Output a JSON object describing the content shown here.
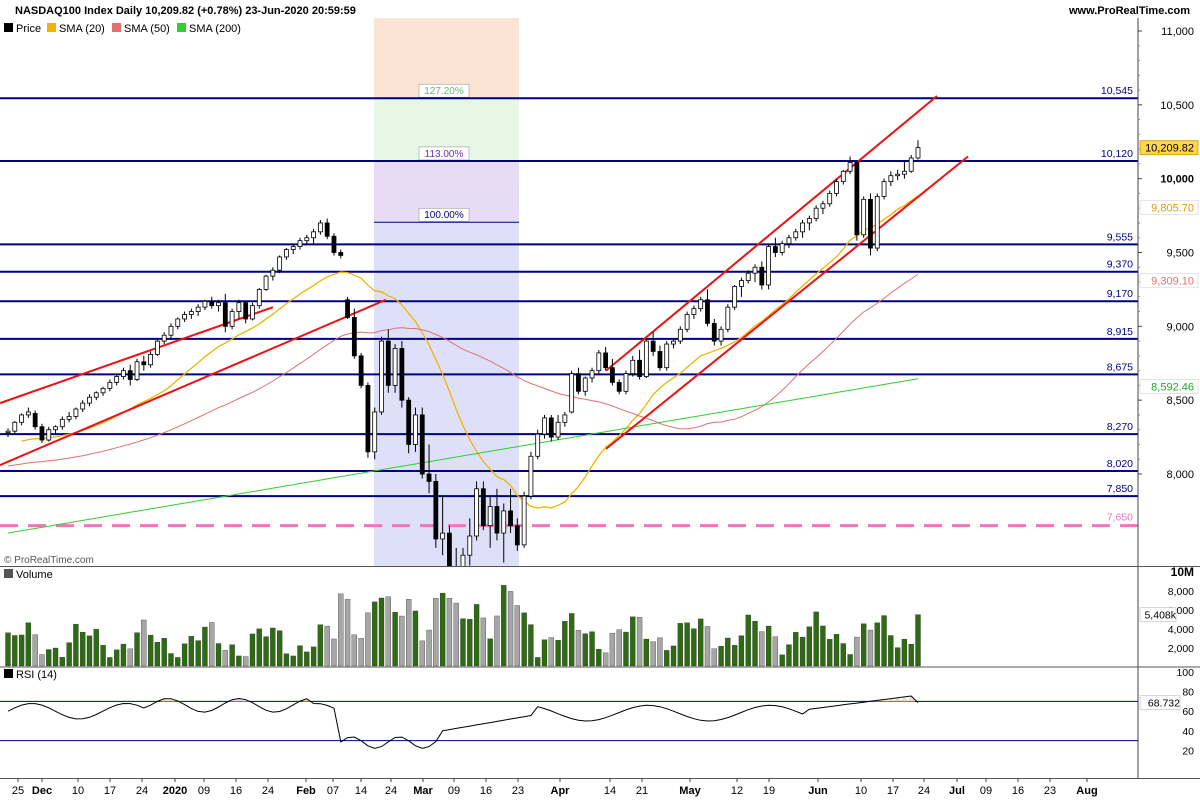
{
  "header": {
    "title": "NASDAQ100 Index Daily 10,209.82 (+0.78%) 23-Jun-2020 20:59:59",
    "brand": "www.ProRealTime.com",
    "watermark": "© ProRealTime.com"
  },
  "legend": {
    "price": "Price",
    "sma20": "SMA (20)",
    "sma50": "SMA (50)",
    "sma200": "SMA (200)",
    "volume": "Volume",
    "rsi": "RSI (14)"
  },
  "colors": {
    "sma20": "#f0b400",
    "sma50": "#e07070",
    "sma200": "#33cc33",
    "channel": "#ee1111",
    "level_line": "#000080",
    "dashed_level": "#ee77bb",
    "fib_band_top": "#fbe4d4",
    "fib_band_mid": "#e6f7e6",
    "fib_band_upper": "#e8dcf5",
    "fib_band_main": "#dde0f8",
    "vol_up": "#2e6b14",
    "vol_down": "#a6a6a6",
    "rsi_fill": "#f0d4d4"
  },
  "chart_data": {
    "type": "candlestick",
    "title": "NASDAQ100 Index Daily",
    "ylim": [
      7600,
      11100
    ],
    "y_ticks": [
      "11,000",
      "10,500",
      "10,000",
      "9,500",
      "9,000",
      "8,500",
      "8,000"
    ],
    "x_ticks": [
      "25",
      "Dec",
      "10",
      "17",
      "24",
      "2020",
      "09",
      "16",
      "24",
      "Feb",
      "07",
      "14",
      "24",
      "Mar",
      "09",
      "16",
      "23",
      "Apr",
      "14",
      "21",
      "May",
      "12",
      "19",
      "Jun",
      "10",
      "17",
      "24",
      "Jul",
      "09",
      "16",
      "23",
      "Aug"
    ],
    "levels": [
      {
        "value": 10545,
        "label": "10,545"
      },
      {
        "value": 10120,
        "label": "10,120"
      },
      {
        "value": 9555,
        "label": "9,555"
      },
      {
        "value": 9370,
        "label": "9,370"
      },
      {
        "value": 9170,
        "label": "9,170"
      },
      {
        "value": 8915,
        "label": "8,915"
      },
      {
        "value": 8675,
        "label": "8,675"
      },
      {
        "value": 8270,
        "label": "8,270"
      },
      {
        "value": 8020,
        "label": "8,020"
      },
      {
        "value": 7850,
        "label": "7,850"
      }
    ],
    "dashed_level": {
      "value": 7650,
      "label": "7,650"
    },
    "fib_labels": [
      {
        "value": 10545,
        "label": "127.20%"
      },
      {
        "value": 10120,
        "label": "113.00%"
      },
      {
        "value": 9705,
        "label": "100.00%"
      }
    ],
    "price_badges": [
      {
        "value": 10209.82,
        "label": "10,209.82",
        "series": "Price"
      },
      {
        "value": 9805.7,
        "label": "9,805.70",
        "series": "SMA (20)"
      },
      {
        "value": 9309.1,
        "label": "9,309.10",
        "series": "SMA (50)"
      },
      {
        "value": 8592.46,
        "label": "8,592.46",
        "series": "SMA (200)"
      }
    ],
    "candles": [
      [
        8280,
        8310,
        8250,
        8290
      ],
      [
        8290,
        8360,
        8270,
        8350
      ],
      [
        8350,
        8410,
        8330,
        8400
      ],
      [
        8400,
        8450,
        8380,
        8420
      ],
      [
        8410,
        8430,
        8300,
        8320
      ],
      [
        8320,
        8340,
        8210,
        8230
      ],
      [
        8230,
        8320,
        8220,
        8300
      ],
      [
        8300,
        8330,
        8270,
        8320
      ],
      [
        8320,
        8390,
        8300,
        8370
      ],
      [
        8370,
        8420,
        8350,
        8390
      ],
      [
        8390,
        8450,
        8370,
        8440
      ],
      [
        8440,
        8500,
        8420,
        8480
      ],
      [
        8480,
        8540,
        8460,
        8520
      ],
      [
        8520,
        8560,
        8500,
        8550
      ],
      [
        8550,
        8590,
        8530,
        8580
      ],
      [
        8580,
        8640,
        8560,
        8620
      ],
      [
        8620,
        8680,
        8600,
        8660
      ],
      [
        8660,
        8720,
        8640,
        8700
      ],
      [
        8700,
        8740,
        8600,
        8640
      ],
      [
        8640,
        8780,
        8630,
        8760
      ],
      [
        8760,
        8800,
        8700,
        8740
      ],
      [
        8740,
        8830,
        8720,
        8810
      ],
      [
        8810,
        8920,
        8800,
        8900
      ],
      [
        8900,
        8960,
        8880,
        8940
      ],
      [
        8940,
        9020,
        8920,
        9000
      ],
      [
        9000,
        9060,
        8980,
        9050
      ],
      [
        9050,
        9100,
        9030,
        9080
      ],
      [
        9080,
        9120,
        9050,
        9100
      ],
      [
        9100,
        9150,
        9070,
        9130
      ],
      [
        9130,
        9180,
        9110,
        9170
      ],
      [
        9170,
        9200,
        9120,
        9140
      ],
      [
        9140,
        9180,
        9100,
        9160
      ],
      [
        9160,
        9220,
        8960,
        9000
      ],
      [
        9000,
        9120,
        8980,
        9100
      ],
      [
        9100,
        9180,
        9050,
        9160
      ],
      [
        9160,
        9170,
        9020,
        9050
      ],
      [
        9050,
        9160,
        9040,
        9140
      ],
      [
        9140,
        9260,
        9120,
        9250
      ],
      [
        9250,
        9350,
        9240,
        9340
      ],
      [
        9340,
        9400,
        9310,
        9380
      ],
      [
        9380,
        9480,
        9360,
        9470
      ],
      [
        9470,
        9530,
        9450,
        9520
      ],
      [
        9520,
        9560,
        9490,
        9540
      ],
      [
        9540,
        9600,
        9520,
        9580
      ],
      [
        9580,
        9620,
        9550,
        9600
      ],
      [
        9600,
        9660,
        9560,
        9640
      ],
      [
        9640,
        9720,
        9620,
        9700
      ],
      [
        9700,
        9730,
        9590,
        9610
      ],
      [
        9610,
        9630,
        9480,
        9500
      ],
      [
        9500,
        9520,
        9460,
        9480
      ],
      [
        9180,
        9200,
        9050,
        9060
      ],
      [
        9060,
        9120,
        8780,
        8800
      ],
      [
        8800,
        8820,
        8580,
        8600
      ],
      [
        8600,
        8620,
        8110,
        8150
      ],
      [
        8150,
        8450,
        8100,
        8420
      ],
      [
        8420,
        8930,
        8400,
        8900
      ],
      [
        8900,
        8980,
        8550,
        8600
      ],
      [
        8600,
        8880,
        8550,
        8850
      ],
      [
        8850,
        8900,
        8450,
        8500
      ],
      [
        8500,
        8520,
        8140,
        8200
      ],
      [
        8200,
        8450,
        8150,
        8400
      ],
      [
        8400,
        8450,
        7970,
        8000
      ],
      [
        8000,
        8200,
        7870,
        7950
      ],
      [
        7950,
        8000,
        7500,
        7560
      ],
      [
        7560,
        7850,
        7450,
        7600
      ],
      [
        7600,
        7650,
        7300,
        7350
      ],
      [
        7350,
        7500,
        7150,
        7200
      ],
      [
        7200,
        7500,
        7100,
        7450
      ],
      [
        7450,
        7700,
        7380,
        7580
      ],
      [
        7580,
        7950,
        7550,
        7900
      ],
      [
        7900,
        7950,
        7620,
        7650
      ],
      [
        7650,
        7850,
        7500,
        7780
      ],
      [
        7780,
        7900,
        7550,
        7600
      ],
      [
        7600,
        7800,
        7400,
        7750
      ],
      [
        7750,
        7900,
        7600,
        7650
      ],
      [
        7650,
        7700,
        7480,
        7520
      ],
      [
        7520,
        7880,
        7500,
        7850
      ],
      [
        7850,
        8150,
        7830,
        8120
      ],
      [
        8120,
        8300,
        8100,
        8270
      ],
      [
        8270,
        8400,
        8240,
        8380
      ],
      [
        8380,
        8400,
        8220,
        8250
      ],
      [
        8250,
        8400,
        8230,
        8350
      ],
      [
        8350,
        8420,
        8320,
        8400
      ],
      [
        8420,
        8700,
        8410,
        8680
      ],
      [
        8680,
        8720,
        8540,
        8560
      ],
      [
        8560,
        8660,
        8530,
        8650
      ],
      [
        8650,
        8720,
        8620,
        8700
      ],
      [
        8700,
        8840,
        8680,
        8820
      ],
      [
        8820,
        8860,
        8700,
        8720
      ],
      [
        8720,
        8780,
        8600,
        8620
      ],
      [
        8620,
        8640,
        8540,
        8560
      ],
      [
        8560,
        8700,
        8540,
        8680
      ],
      [
        8680,
        8800,
        8660,
        8770
      ],
      [
        8770,
        8840,
        8640,
        8660
      ],
      [
        8660,
        8920,
        8650,
        8900
      ],
      [
        8900,
        8960,
        8800,
        8830
      ],
      [
        8830,
        8870,
        8700,
        8720
      ],
      [
        8720,
        8900,
        8700,
        8880
      ],
      [
        8880,
        8920,
        8850,
        8900
      ],
      [
        8900,
        9000,
        8880,
        8980
      ],
      [
        8980,
        9100,
        8960,
        9080
      ],
      [
        9080,
        9140,
        9050,
        9120
      ],
      [
        9120,
        9200,
        9100,
        9180
      ],
      [
        9180,
        9250,
        9000,
        9020
      ],
      [
        9020,
        9050,
        8870,
        8900
      ],
      [
        8900,
        9000,
        8870,
        8980
      ],
      [
        8980,
        9150,
        8960,
        9130
      ],
      [
        9130,
        9280,
        9110,
        9270
      ],
      [
        9270,
        9330,
        9200,
        9310
      ],
      [
        9310,
        9380,
        9290,
        9360
      ],
      [
        9360,
        9420,
        9300,
        9400
      ],
      [
        9400,
        9440,
        9250,
        9280
      ],
      [
        9280,
        9560,
        9250,
        9540
      ],
      [
        9540,
        9600,
        9470,
        9500
      ],
      [
        9500,
        9580,
        9480,
        9560
      ],
      [
        9560,
        9620,
        9530,
        9600
      ],
      [
        9600,
        9660,
        9580,
        9640
      ],
      [
        9640,
        9720,
        9600,
        9700
      ],
      [
        9700,
        9750,
        9650,
        9730
      ],
      [
        9730,
        9820,
        9710,
        9800
      ],
      [
        9800,
        9850,
        9760,
        9830
      ],
      [
        9830,
        9920,
        9810,
        9900
      ],
      [
        9900,
        10000,
        9880,
        9980
      ],
      [
        9980,
        10060,
        9960,
        10050
      ],
      [
        10050,
        10150,
        10030,
        10110
      ],
      [
        10110,
        10120,
        9580,
        9620
      ],
      [
        9620,
        9880,
        9600,
        9860
      ],
      [
        9860,
        9900,
        9480,
        9530
      ],
      [
        9530,
        9900,
        9510,
        9880
      ],
      [
        9880,
        10000,
        9860,
        9980
      ],
      [
        9980,
        10050,
        9950,
        10020
      ],
      [
        10020,
        10060,
        9990,
        10030
      ],
      [
        10030,
        10120,
        10000,
        10050
      ],
      [
        10050,
        10160,
        10040,
        10140
      ],
      [
        10140,
        10260,
        10130,
        10210
      ]
    ],
    "volume_ylim": [
      0,
      10000
    ],
    "volume_ticks": [
      "10M",
      "8,000",
      "6,000",
      "4,000",
      "2,000"
    ],
    "volume_last_label": "5,408k",
    "rsi_ylim": [
      0,
      100
    ],
    "rsi_ticks": [
      "100",
      "80",
      "60",
      "40",
      "20"
    ],
    "rsi_levels": [
      70,
      30
    ],
    "rsi_last_label": "68.732"
  }
}
